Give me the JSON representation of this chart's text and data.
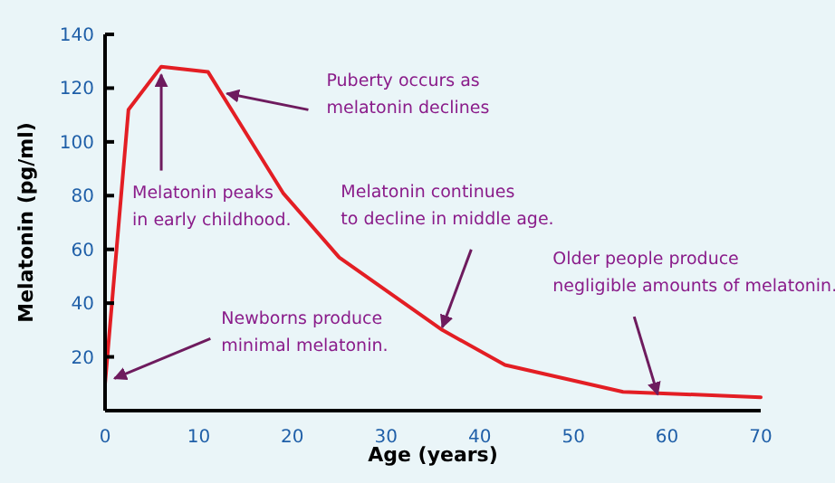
{
  "chart_data": {
    "type": "line",
    "xlabel": "Age (years)",
    "ylabel": "Melatonin (pg/ml)",
    "x": [
      0,
      2.5,
      6,
      11,
      19,
      25,
      36,
      42.7,
      55.3,
      70
    ],
    "series": [
      {
        "color": "#e31e24",
        "values": [
          10,
          112,
          128,
          126,
          81,
          57,
          30,
          17,
          7,
          5
        ]
      }
    ],
    "xlim": [
      0,
      70
    ],
    "ylim": [
      0,
      140
    ],
    "xticks": [
      0,
      10,
      20,
      30,
      40,
      50,
      60,
      70
    ],
    "yticks": [
      20,
      40,
      60,
      80,
      100,
      120,
      140
    ],
    "grid": false,
    "marker": "none",
    "line_style": "solid",
    "annotations": [
      {
        "text": "Newborns produce\nminimal melatonin.",
        "x": 1,
        "y": 12
      },
      {
        "text": "Melatonin peaks\nin early childhood.",
        "x": 6,
        "y": 125
      },
      {
        "text": "Puberty occurs as\nmelatonin declines",
        "x": 13,
        "y": 118
      },
      {
        "text": "Melatonin continues\nto decline in middle age.",
        "x": 36,
        "y": 31
      },
      {
        "text": "Older people produce\nnegligible amounts of melatonin.",
        "x": 59,
        "y": 6
      }
    ]
  }
}
